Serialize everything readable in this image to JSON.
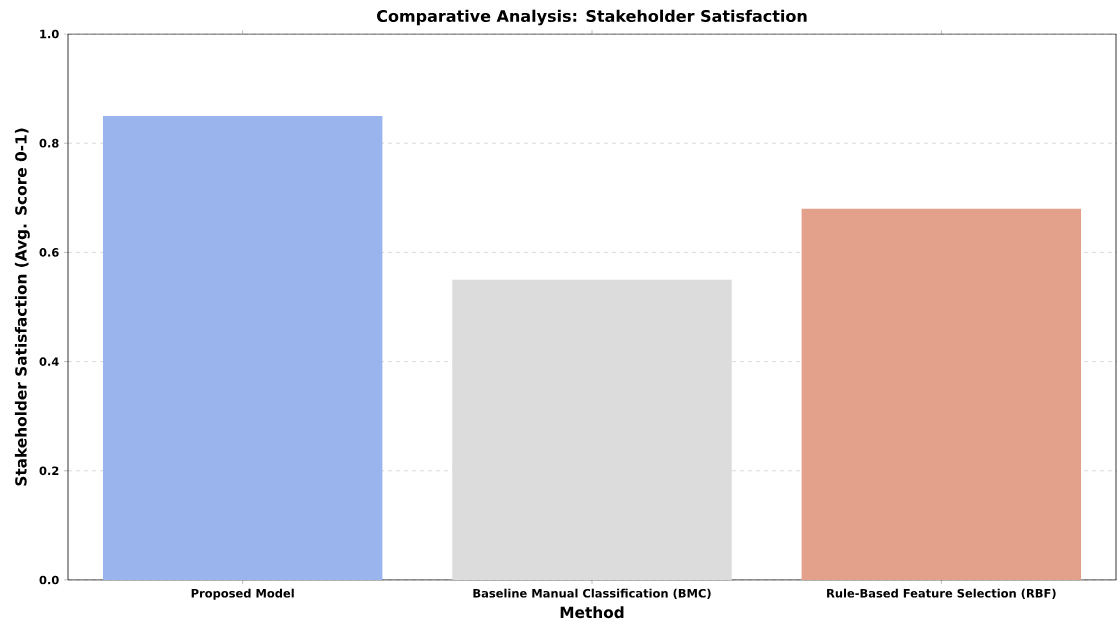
{
  "chart_data": {
    "type": "bar",
    "title": "Comparative Analysis: Stakeholder Satisfaction",
    "xlabel": "Method",
    "ylabel": "Stakeholder Satisfaction (Avg. Score 0-1)",
    "categories": [
      "Proposed Model",
      "Baseline Manual Classification (BMC)",
      "Rule-Based Feature Selection (RBF)"
    ],
    "values": [
      0.85,
      0.55,
      0.68
    ],
    "colors": [
      "#9ab4ee",
      "#dcdcdc",
      "#e3a08a"
    ],
    "ylim": [
      0,
      1
    ],
    "yticks": [
      {
        "value": 0,
        "label": "0.0"
      },
      {
        "value": 0.2,
        "label": "0.2"
      },
      {
        "value": 0.4,
        "label": "0.4"
      },
      {
        "value": 0.6,
        "label": "0.6"
      },
      {
        "value": 0.8,
        "label": "0.8"
      },
      {
        "value": 1,
        "label": "1.0"
      }
    ],
    "grid": "y"
  }
}
